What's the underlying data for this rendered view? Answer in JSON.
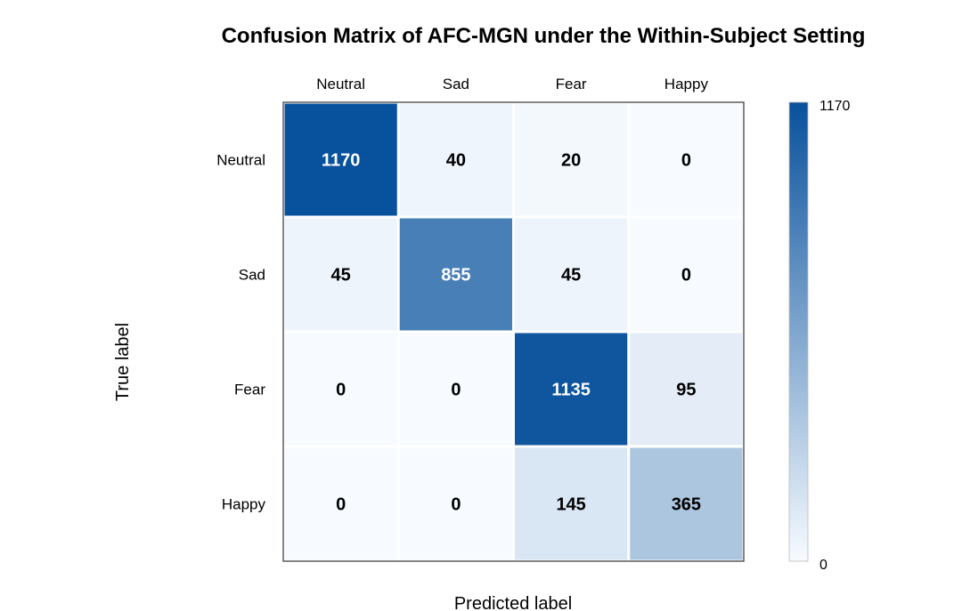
{
  "chart_data": {
    "type": "heatmap",
    "title": "Confusion Matrix of AFC-MGN under the Within-Subject Setting",
    "xlabel": "Predicted label",
    "ylabel": "True label",
    "x_categories": [
      "Neutral",
      "Sad",
      "Fear",
      "Happy"
    ],
    "y_categories": [
      "Neutral",
      "Sad",
      "Fear",
      "Happy"
    ],
    "values": [
      [
        1170,
        40,
        20,
        0
      ],
      [
        45,
        855,
        45,
        0
      ],
      [
        0,
        0,
        1135,
        95
      ],
      [
        0,
        0,
        145,
        365
      ]
    ],
    "colorbar": {
      "min": 0,
      "max": 1170,
      "min_label": "0",
      "max_label": "1170"
    },
    "colors": {
      "low": "#f7fbff",
      "high": "#08519c",
      "text_dark": "#000000",
      "text_light": "#ffffff"
    }
  }
}
